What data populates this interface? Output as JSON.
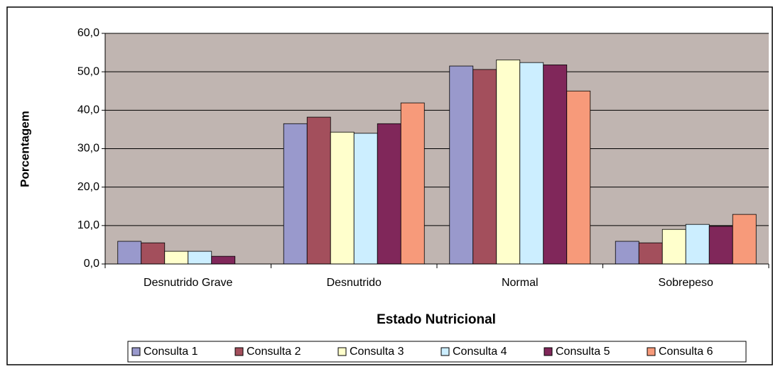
{
  "chart_data": {
    "type": "bar",
    "categories": [
      "Desnutrido Grave",
      "Desnutrido",
      "Normal",
      "Sobrepeso"
    ],
    "series": [
      {
        "name": "Consulta 1",
        "color": "#9999cc",
        "values": [
          5.9,
          36.5,
          51.5,
          5.9
        ]
      },
      {
        "name": "Consulta 2",
        "color": "#a34f5c",
        "values": [
          5.5,
          38.2,
          50.6,
          5.5
        ]
      },
      {
        "name": "Consulta 3",
        "color": "#ffffcc",
        "values": [
          3.3,
          34.3,
          53.1,
          9.0
        ]
      },
      {
        "name": "Consulta 4",
        "color": "#cceeff",
        "values": [
          3.3,
          34.0,
          52.4,
          10.3
        ]
      },
      {
        "name": "Consulta 5",
        "color": "#80275a",
        "values": [
          2.0,
          36.5,
          51.8,
          9.8
        ]
      },
      {
        "name": "Consulta 6",
        "color": "#f79a7a",
        "values": [
          0,
          41.9,
          45.0,
          12.9
        ]
      }
    ],
    "x_label": "Estado Nutricional",
    "y_label": "Porcentagem",
    "ylim": [
      0,
      60
    ],
    "yticks": [
      {
        "value": 0,
        "label": "0,0"
      },
      {
        "value": 10,
        "label": "10,0"
      },
      {
        "value": 20,
        "label": "20,0"
      },
      {
        "value": 30,
        "label": "30,0"
      },
      {
        "value": 40,
        "label": "40,0"
      },
      {
        "value": 50,
        "label": "50,0"
      },
      {
        "value": 60,
        "label": "60,0"
      }
    ],
    "grid": true,
    "legend": "bottom"
  }
}
